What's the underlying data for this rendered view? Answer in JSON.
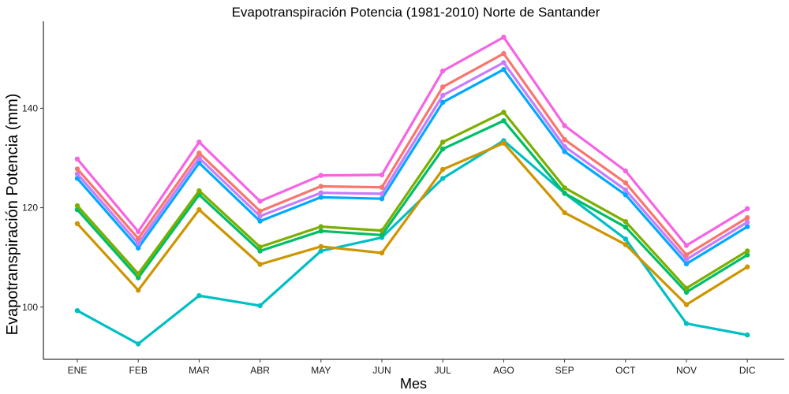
{
  "chart_data": {
    "type": "line",
    "title": "Evapotranspiración Potencia (1981-2010)  Norte de Santander",
    "xlabel": "Mes",
    "ylabel": "Evapotranspiración Potencia  (mm)",
    "categories": [
      "ENE",
      "FEB",
      "MAR",
      "ABR",
      "MAY",
      "JUN",
      "JUL",
      "AGO",
      "SEP",
      "OCT",
      "NOV",
      "DIC"
    ],
    "yticks": [
      100,
      120,
      140
    ],
    "ylim": [
      89.5,
      157.5
    ],
    "grid": false,
    "legend": "none",
    "series": [
      {
        "color": "#F564E3",
        "values": [
          129.8,
          115.2,
          133.2,
          121.3,
          126.5,
          126.6,
          147.5,
          154.3,
          136.5,
          127.4,
          112.4,
          119.8
        ]
      },
      {
        "color": "#F8766D",
        "values": [
          127.8,
          113.8,
          131.0,
          119.3,
          124.3,
          124.1,
          144.3,
          151.0,
          133.7,
          125.0,
          110.5,
          118.0
        ]
      },
      {
        "color": "#C77CFF",
        "values": [
          126.8,
          112.8,
          130.0,
          118.3,
          123.0,
          122.8,
          142.6,
          149.2,
          132.3,
          123.6,
          109.6,
          117.1
        ]
      },
      {
        "color": "#00A9FF",
        "values": [
          125.9,
          111.9,
          129.0,
          117.3,
          122.1,
          121.8,
          141.2,
          147.8,
          131.3,
          122.6,
          108.7,
          116.2
        ]
      },
      {
        "color": "#7CAE00",
        "values": [
          120.4,
          106.7,
          123.4,
          112.1,
          116.2,
          115.4,
          133.2,
          139.2,
          124.0,
          117.2,
          103.8,
          111.3
        ]
      },
      {
        "color": "#00BE67",
        "values": [
          119.6,
          105.9,
          122.6,
          111.3,
          115.3,
          114.5,
          131.8,
          137.5,
          122.9,
          116.1,
          103.0,
          110.5
        ]
      },
      {
        "color": "#CD9600",
        "values": [
          116.8,
          103.4,
          119.6,
          108.6,
          112.2,
          110.9,
          127.7,
          133.0,
          119.0,
          112.6,
          100.5,
          108.1
        ]
      },
      {
        "color": "#00BFC4",
        "values": [
          99.3,
          92.6,
          102.3,
          100.3,
          111.3,
          114.0,
          125.9,
          133.5,
          122.9,
          113.7,
          96.7,
          94.4
        ]
      }
    ]
  }
}
